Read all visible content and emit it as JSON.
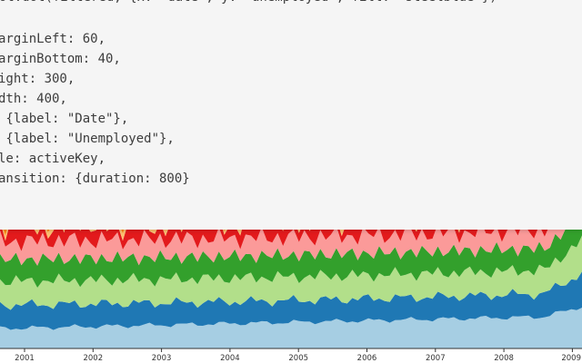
{
  "editor": {
    "code_lines": [
      "Plot.dot(filtered, {x: \"date\", y: \"unemployed\", fill: \"steelblue\"})",
      "",
      "arginLeft: 60,",
      "arginBottom: 40,",
      "ight: 300,",
      "dth: 400,",
      " {label: \"Date\"},",
      " {label: \"Unemployed\"},",
      "le: activeKey,",
      "ansition: {duration: 800}"
    ]
  },
  "chart_data": {
    "type": "area",
    "stacked": true,
    "x_ticks": [
      "2001",
      "2002",
      "2003",
      "2004",
      "2005",
      "2006",
      "2007",
      "2008",
      "2009"
    ],
    "series_colors": [
      "#a6cee3",
      "#1f78b4",
      "#b2df8a",
      "#33a02c",
      "#fb9a99",
      "#e31a1c",
      "#fdbf6f",
      "#ff7f00",
      "#cab2d6",
      "#6a3d9a"
    ]
  }
}
